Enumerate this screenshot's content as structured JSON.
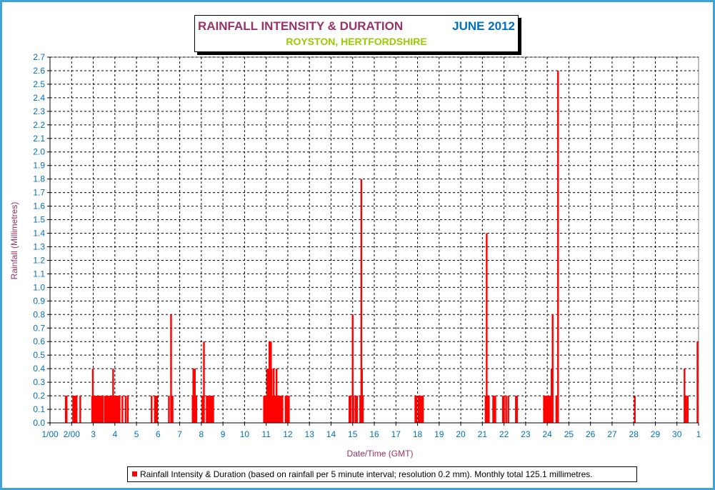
{
  "chart_data": {
    "type": "bar",
    "title": "RAINFALL INTENSITY & DURATION",
    "title_month": "JUNE 2012",
    "subtitle": "ROYSTON, HERTFORDSHIRE",
    "xlabel": "Date/Time (GMT)",
    "ylabel": "Rainfall (Millimetres)",
    "ylim": [
      0,
      2.7
    ],
    "y_step": 0.1,
    "xlim": [
      1,
      31
    ],
    "x_ticks": [
      "1/00",
      "2/00",
      "3",
      "4",
      "5",
      "6",
      "7",
      "8",
      "9",
      "10",
      "11",
      "12",
      "13",
      "14",
      "15",
      "16",
      "17",
      "18",
      "19",
      "20",
      "21",
      "22",
      "23",
      "24",
      "25",
      "26",
      "27",
      "28",
      "29",
      "30",
      "1"
    ],
    "grid": true,
    "legend_position": "bottom",
    "colors": {
      "series": "#ff0000",
      "title": "#993366",
      "month": "#0070c0",
      "subtitle": "#99cc00",
      "frame": "#3fa3d6",
      "axis_text": "#0070c0"
    },
    "series": [
      {
        "name": "Rainfall Intensity & Duration (based on rainfall per 5 minute interval; resolution 0.2 mm). Monthly total 125.1 millimetres.",
        "points": [
          [
            1.73,
            0.2
          ],
          [
            1.77,
            0.2
          ],
          [
            2.07,
            0.2
          ],
          [
            2.1,
            0.2
          ],
          [
            2.13,
            0.2
          ],
          [
            2.17,
            0.2
          ],
          [
            2.2,
            0.2
          ],
          [
            2.23,
            0.2
          ],
          [
            2.4,
            0.2
          ],
          [
            2.95,
            0.2
          ],
          [
            2.98,
            0.4
          ],
          [
            3.02,
            0.2
          ],
          [
            3.05,
            0.2
          ],
          [
            3.08,
            0.2
          ],
          [
            3.12,
            0.2
          ],
          [
            3.15,
            0.2
          ],
          [
            3.18,
            0.2
          ],
          [
            3.22,
            0.2
          ],
          [
            3.25,
            0.2
          ],
          [
            3.28,
            0.2
          ],
          [
            3.32,
            0.2
          ],
          [
            3.35,
            0.2
          ],
          [
            3.38,
            0.2
          ],
          [
            3.45,
            0.2
          ],
          [
            3.55,
            0.2
          ],
          [
            3.6,
            0.2
          ],
          [
            3.65,
            0.2
          ],
          [
            3.7,
            0.2
          ],
          [
            3.75,
            0.2
          ],
          [
            3.8,
            0.2
          ],
          [
            3.85,
            0.2
          ],
          [
            3.88,
            0.2
          ],
          [
            3.92,
            0.4
          ],
          [
            3.95,
            0.2
          ],
          [
            3.98,
            0.2
          ],
          [
            4.02,
            0.2
          ],
          [
            4.05,
            0.2
          ],
          [
            4.08,
            0.2
          ],
          [
            4.12,
            0.2
          ],
          [
            4.15,
            0.2
          ],
          [
            4.18,
            0.2
          ],
          [
            4.22,
            0.2
          ],
          [
            4.35,
            0.2
          ],
          [
            4.5,
            0.2
          ],
          [
            4.6,
            0.2
          ],
          [
            5.7,
            0.2
          ],
          [
            5.85,
            0.2
          ],
          [
            5.9,
            0.2
          ],
          [
            5.95,
            0.2
          ],
          [
            6.5,
            0.2
          ],
          [
            6.6,
            0.8
          ],
          [
            6.63,
            0.2
          ],
          [
            6.67,
            0.2
          ],
          [
            7.6,
            0.2
          ],
          [
            7.63,
            0.4
          ],
          [
            7.67,
            0.2
          ],
          [
            7.7,
            0.4
          ],
          [
            7.73,
            0.2
          ],
          [
            7.77,
            0.2
          ],
          [
            8.05,
            0.2
          ],
          [
            8.12,
            0.6
          ],
          [
            8.25,
            0.2
          ],
          [
            8.28,
            0.2
          ],
          [
            8.32,
            0.2
          ],
          [
            8.35,
            0.2
          ],
          [
            8.38,
            0.2
          ],
          [
            8.42,
            0.2
          ],
          [
            8.45,
            0.2
          ],
          [
            8.48,
            0.2
          ],
          [
            8.52,
            0.2
          ],
          [
            8.55,
            0.2
          ],
          [
            10.9,
            0.2
          ],
          [
            10.95,
            0.2
          ],
          [
            11.0,
            0.2
          ],
          [
            11.05,
            0.4
          ],
          [
            11.08,
            0.2
          ],
          [
            11.12,
            0.4
          ],
          [
            11.15,
            0.6
          ],
          [
            11.18,
            0.4
          ],
          [
            11.22,
            0.6
          ],
          [
            11.25,
            0.4
          ],
          [
            11.28,
            0.2
          ],
          [
            11.32,
            0.2
          ],
          [
            11.35,
            0.4
          ],
          [
            11.38,
            0.2
          ],
          [
            11.42,
            0.2
          ],
          [
            11.45,
            0.2
          ],
          [
            11.48,
            0.4
          ],
          [
            11.52,
            0.2
          ],
          [
            11.55,
            0.2
          ],
          [
            11.58,
            0.2
          ],
          [
            11.62,
            0.2
          ],
          [
            11.65,
            0.2
          ],
          [
            11.68,
            0.2
          ],
          [
            11.72,
            0.2
          ],
          [
            11.75,
            0.2
          ],
          [
            11.9,
            0.2
          ],
          [
            11.95,
            0.2
          ],
          [
            12.0,
            0.2
          ],
          [
            12.05,
            0.2
          ],
          [
            14.85,
            0.2
          ],
          [
            14.9,
            0.2
          ],
          [
            15.0,
            0.8
          ],
          [
            15.03,
            0.2
          ],
          [
            15.13,
            0.2
          ],
          [
            15.2,
            0.2
          ],
          [
            15.35,
            0.2
          ],
          [
            15.4,
            1.8
          ],
          [
            15.43,
            0.4
          ],
          [
            15.47,
            0.2
          ],
          [
            17.9,
            0.2
          ],
          [
            17.95,
            0.2
          ],
          [
            18.05,
            0.2
          ],
          [
            18.1,
            0.2
          ],
          [
            18.15,
            0.2
          ],
          [
            18.2,
            0.2
          ],
          [
            18.25,
            0.2
          ],
          [
            21.15,
            0.2
          ],
          [
            21.2,
            1.4
          ],
          [
            21.25,
            0.2
          ],
          [
            21.3,
            0.2
          ],
          [
            21.5,
            0.2
          ],
          [
            21.55,
            0.2
          ],
          [
            21.6,
            0.2
          ],
          [
            21.95,
            0.2
          ],
          [
            22.0,
            0.2
          ],
          [
            22.1,
            0.2
          ],
          [
            22.2,
            0.2
          ],
          [
            22.55,
            0.2
          ],
          [
            22.6,
            0.2
          ],
          [
            23.85,
            0.2
          ],
          [
            23.9,
            0.2
          ],
          [
            23.95,
            0.2
          ],
          [
            24.0,
            0.2
          ],
          [
            24.05,
            0.2
          ],
          [
            24.1,
            0.2
          ],
          [
            24.15,
            0.2
          ],
          [
            24.2,
            0.4
          ],
          [
            24.25,
            0.8
          ],
          [
            24.42,
            0.2
          ],
          [
            24.5,
            2.6
          ],
          [
            28.05,
            0.2
          ],
          [
            30.35,
            0.4
          ],
          [
            30.42,
            0.2
          ],
          [
            30.5,
            0.2
          ],
          [
            30.95,
            0.6
          ]
        ]
      }
    ]
  }
}
